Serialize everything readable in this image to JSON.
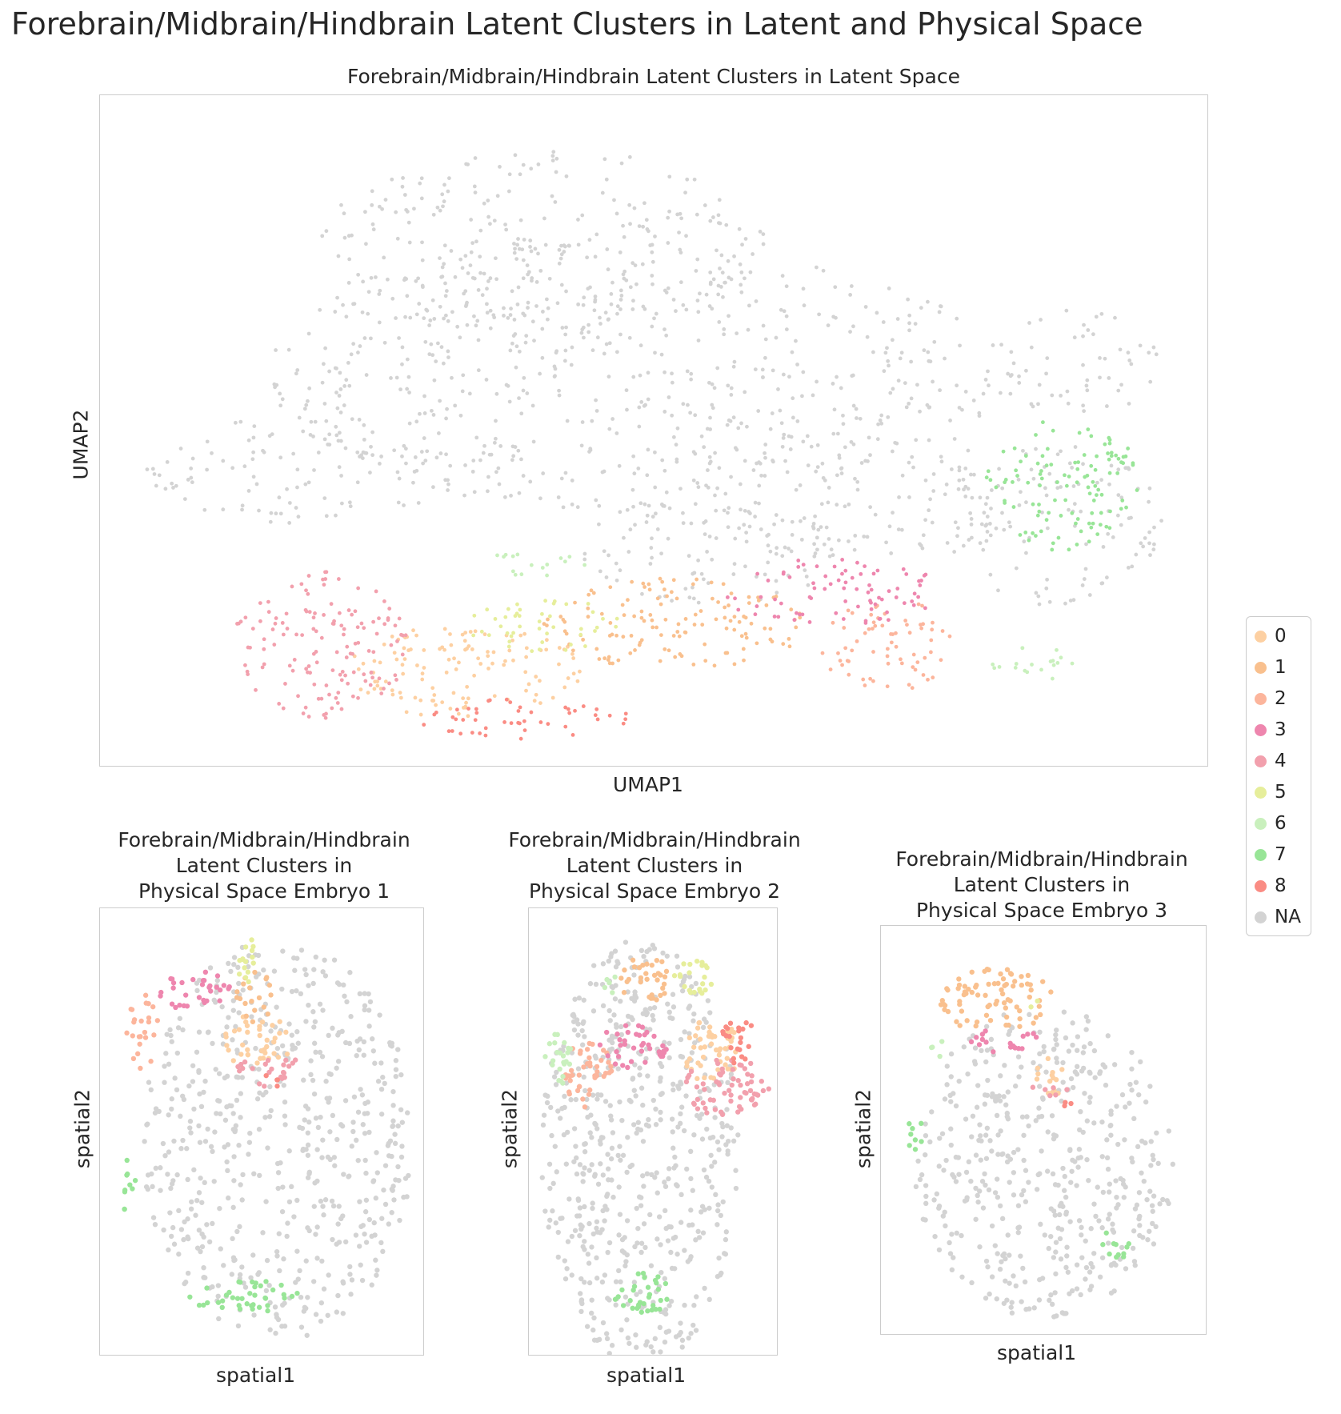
{
  "figure": {
    "suptitle": "Forebrain/Midbrain/Hindbrain Latent Clusters in Latent and Physical Space"
  },
  "legend": {
    "placement": "right",
    "entries": [
      {
        "label": "0",
        "color": "#fdd0a2"
      },
      {
        "label": "1",
        "color": "#f9c08e"
      },
      {
        "label": "2",
        "color": "#fcb59c"
      },
      {
        "label": "3",
        "color": "#ee86ae"
      },
      {
        "label": "4",
        "color": "#f2a0ad"
      },
      {
        "label": "5",
        "color": "#e6ee9b"
      },
      {
        "label": "6",
        "color": "#c9f0bd"
      },
      {
        "label": "7",
        "color": "#98e597"
      },
      {
        "label": "8",
        "color": "#fa8c84"
      },
      {
        "label": "NA",
        "color": "#d3d3d3"
      }
    ]
  },
  "chart_data": [
    {
      "type": "scatter",
      "title": "Forebrain/Midbrain/Hindbrain Latent Clusters in Latent Space",
      "xlabel": "UMAP1",
      "ylabel": "UMAP2",
      "grid": false,
      "ticks": false,
      "xlim": [
        0,
        100
      ],
      "ylim": [
        0,
        100
      ],
      "series": [
        {
          "name": "NA",
          "regions": [
            {
              "cx": 48,
              "cy": 58,
              "rx": 33,
              "ry": 20
            },
            {
              "cx": 40,
              "cy": 78,
              "rx": 20,
              "ry": 14
            },
            {
              "cx": 18,
              "cy": 44,
              "rx": 14,
              "ry": 8
            },
            {
              "cx": 68,
              "cy": 40,
              "rx": 16,
              "ry": 10
            },
            {
              "cx": 86,
              "cy": 36,
              "rx": 10,
              "ry": 12
            },
            {
              "cx": 88,
              "cy": 60,
              "rx": 8,
              "ry": 8
            },
            {
              "cx": 55,
              "cy": 32,
              "rx": 12,
              "ry": 8
            }
          ]
        },
        {
          "name": "0",
          "regions": [
            {
              "cx": 33,
              "cy": 14,
              "rx": 11,
              "ry": 7
            }
          ]
        },
        {
          "name": "1",
          "regions": [
            {
              "cx": 52,
              "cy": 21,
              "rx": 12,
              "ry": 7
            }
          ]
        },
        {
          "name": "2",
          "regions": [
            {
              "cx": 71,
              "cy": 18,
              "rx": 6,
              "ry": 7
            }
          ]
        },
        {
          "name": "3",
          "regions": [
            {
              "cx": 66,
              "cy": 26,
              "rx": 10,
              "ry": 5
            }
          ]
        },
        {
          "name": "4",
          "regions": [
            {
              "cx": 20,
              "cy": 18,
              "rx": 8,
              "ry": 11
            }
          ]
        },
        {
          "name": "5",
          "regions": [
            {
              "cx": 40,
              "cy": 21,
              "rx": 7,
              "ry": 4
            }
          ]
        },
        {
          "name": "6",
          "regions": [
            {
              "cx": 39,
              "cy": 30,
              "rx": 5,
              "ry": 2
            },
            {
              "cx": 84,
              "cy": 15,
              "rx": 4,
              "ry": 3
            }
          ]
        },
        {
          "name": "7",
          "regions": [
            {
              "cx": 87,
              "cy": 42,
              "rx": 7,
              "ry": 10
            }
          ]
        },
        {
          "name": "8",
          "regions": [
            {
              "cx": 38,
              "cy": 7,
              "rx": 10,
              "ry": 3
            }
          ]
        }
      ]
    },
    {
      "type": "scatter",
      "title": [
        "Forebrain/Midbrain/Hindbrain",
        "Latent Clusters in",
        "Physical Space Embryo 1"
      ],
      "xlabel": "spatial1",
      "ylabel": "spatial2",
      "grid": false,
      "ticks": false,
      "xlim": [
        0,
        100
      ],
      "ylim": [
        0,
        100
      ],
      "series": [
        {
          "name": "NA",
          "regions": [
            {
              "cx": 55,
              "cy": 48,
              "rx": 42,
              "ry": 45
            }
          ]
        },
        {
          "name": "0",
          "regions": [
            {
              "cx": 48,
              "cy": 70,
              "rx": 12,
              "ry": 6
            }
          ]
        },
        {
          "name": "1",
          "regions": [
            {
              "cx": 48,
              "cy": 80,
              "rx": 6,
              "ry": 6
            }
          ]
        },
        {
          "name": "2",
          "regions": [
            {
              "cx": 13,
              "cy": 73,
              "rx": 5,
              "ry": 9
            }
          ]
        },
        {
          "name": "3",
          "regions": [
            {
              "cx": 30,
              "cy": 81,
              "rx": 12,
              "ry": 5
            }
          ]
        },
        {
          "name": "4",
          "regions": [
            {
              "cx": 52,
              "cy": 64,
              "rx": 10,
              "ry": 4
            }
          ]
        },
        {
          "name": "5",
          "regions": [
            {
              "cx": 45,
              "cy": 89,
              "rx": 4,
              "ry": 7
            }
          ]
        },
        {
          "name": "7",
          "regions": [
            {
              "cx": 45,
              "cy": 13,
              "rx": 18,
              "ry": 4
            },
            {
              "cx": 8,
              "cy": 38,
              "rx": 3,
              "ry": 6
            }
          ]
        },
        {
          "name": "8",
          "regions": [
            {
              "cx": 55,
              "cy": 62,
              "rx": 4,
              "ry": 2
            }
          ]
        }
      ]
    },
    {
      "type": "scatter",
      "title": [
        "Forebrain/Midbrain/Hindbrain",
        "Latent Clusters in",
        "Physical Space Embryo 2"
      ],
      "xlabel": "spatial1",
      "ylabel": "spatial2",
      "grid": false,
      "ticks": false,
      "xlim": [
        0,
        100
      ],
      "ylim": [
        0,
        100
      ],
      "series": [
        {
          "name": "NA",
          "regions": [
            {
              "cx": 45,
              "cy": 45,
              "rx": 40,
              "ry": 48
            }
          ]
        },
        {
          "name": "0",
          "regions": [
            {
              "cx": 73,
              "cy": 68,
              "rx": 13,
              "ry": 7
            }
          ]
        },
        {
          "name": "1",
          "regions": [
            {
              "cx": 47,
              "cy": 84,
              "rx": 10,
              "ry": 6
            }
          ]
        },
        {
          "name": "2",
          "regions": [
            {
              "cx": 24,
              "cy": 63,
              "rx": 10,
              "ry": 8
            }
          ]
        },
        {
          "name": "3",
          "regions": [
            {
              "cx": 42,
              "cy": 69,
              "rx": 14,
              "ry": 5
            }
          ]
        },
        {
          "name": "4",
          "regions": [
            {
              "cx": 80,
              "cy": 60,
              "rx": 17,
              "ry": 7
            }
          ]
        },
        {
          "name": "5",
          "regions": [
            {
              "cx": 66,
              "cy": 84,
              "rx": 8,
              "ry": 5
            }
          ]
        },
        {
          "name": "6",
          "regions": [
            {
              "cx": 12,
              "cy": 65,
              "rx": 6,
              "ry": 7
            },
            {
              "cx": 35,
              "cy": 83,
              "rx": 5,
              "ry": 2
            }
          ]
        },
        {
          "name": "7",
          "regions": [
            {
              "cx": 45,
              "cy": 14,
              "rx": 12,
              "ry": 5
            }
          ]
        },
        {
          "name": "8",
          "regions": [
            {
              "cx": 85,
              "cy": 70,
              "rx": 8,
              "ry": 5
            }
          ]
        }
      ]
    },
    {
      "type": "scatter",
      "title": [
        "Forebrain/Midbrain/Hindbrain",
        "Latent Clusters in",
        "Physical Space Embryo 3"
      ],
      "xlabel": "spatial1",
      "ylabel": "spatial2",
      "grid": false,
      "ticks": false,
      "xlim": [
        0,
        100
      ],
      "ylim": [
        0,
        100
      ],
      "series": [
        {
          "name": "NA",
          "regions": [
            {
              "cx": 50,
              "cy": 42,
              "rx": 40,
              "ry": 38
            }
          ]
        },
        {
          "name": "0",
          "regions": [
            {
              "cx": 52,
              "cy": 63,
              "rx": 5,
              "ry": 5
            }
          ]
        },
        {
          "name": "1",
          "regions": [
            {
              "cx": 35,
              "cy": 82,
              "rx": 18,
              "ry": 8
            }
          ]
        },
        {
          "name": "3",
          "regions": [
            {
              "cx": 37,
              "cy": 72,
              "rx": 12,
              "ry": 3
            }
          ]
        },
        {
          "name": "4",
          "regions": [
            {
              "cx": 52,
              "cy": 60,
              "rx": 6,
              "ry": 2
            }
          ]
        },
        {
          "name": "5",
          "regions": [
            {
              "cx": 47,
              "cy": 80,
              "rx": 2,
              "ry": 2
            }
          ]
        },
        {
          "name": "6",
          "regions": [
            {
              "cx": 17,
              "cy": 70,
              "rx": 2,
              "ry": 4
            }
          ]
        },
        {
          "name": "7",
          "regions": [
            {
              "cx": 73,
              "cy": 22,
              "rx": 5,
              "ry": 4
            },
            {
              "cx": 10,
              "cy": 50,
              "rx": 3,
              "ry": 5
            }
          ]
        },
        {
          "name": "8",
          "regions": [
            {
              "cx": 58,
              "cy": 56,
              "rx": 3,
              "ry": 2
            }
          ]
        }
      ]
    }
  ]
}
